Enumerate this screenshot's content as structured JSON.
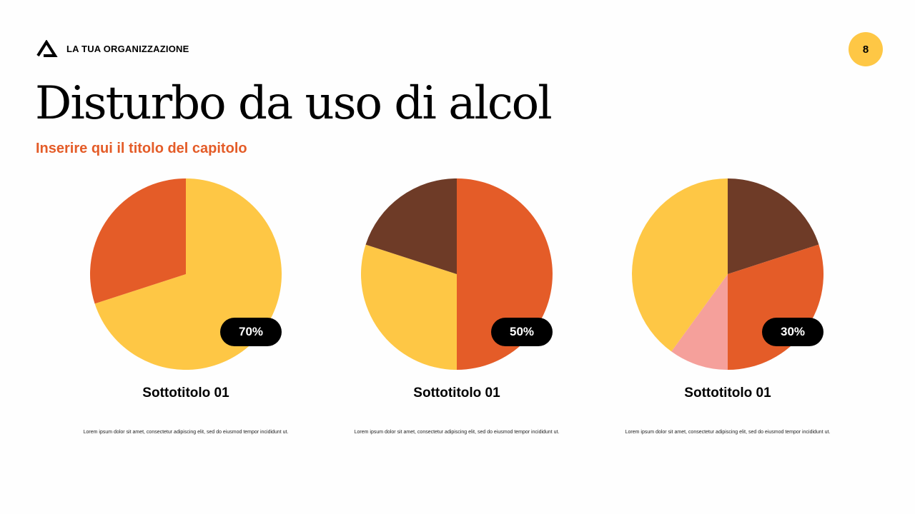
{
  "header": {
    "organization": "LA TUA ORGANIZZAZIONE",
    "page_number": "8",
    "logo_icon": "triangle-logo-icon"
  },
  "title": "Disturbo da uso di alcol",
  "subtitle": "Inserire qui il titolo del capitolo",
  "colors": {
    "yellow": "#fec745",
    "orange": "#e45c28",
    "brown": "#6e3b27",
    "pink": "#f5a09b",
    "accent": "#e45c28"
  },
  "chart_data": [
    {
      "type": "pie",
      "slices": [
        {
          "value": 70,
          "color": "#fec745"
        },
        {
          "value": 30,
          "color": "#e45c28"
        }
      ],
      "label": "70%",
      "subtitle": "Sottotitolo 01",
      "description": "Lorem ipsum dolor sit amet, consectetur adipiscing elit, sed do eiusmod tempor incididunt ut."
    },
    {
      "type": "pie",
      "slices": [
        {
          "value": 50,
          "color": "#e45c28"
        },
        {
          "value": 30,
          "color": "#fec745"
        },
        {
          "value": 20,
          "color": "#6e3b27"
        }
      ],
      "label": "50%",
      "subtitle": "Sottotitolo 01",
      "description": "Lorem ipsum dolor sit amet, consectetur adipiscing elit, sed do eiusmod tempor incididunt ut."
    },
    {
      "type": "pie",
      "slices": [
        {
          "value": 20,
          "color": "#6e3b27"
        },
        {
          "value": 30,
          "color": "#e45c28"
        },
        {
          "value": 10,
          "color": "#f5a09b"
        },
        {
          "value": 40,
          "color": "#fec745"
        }
      ],
      "label": "30%",
      "subtitle": "Sottotitolo 01",
      "description": "Lorem ipsum dolor sit amet, consectetur adipiscing elit, sed do eiusmod tempor incididunt ut."
    }
  ]
}
